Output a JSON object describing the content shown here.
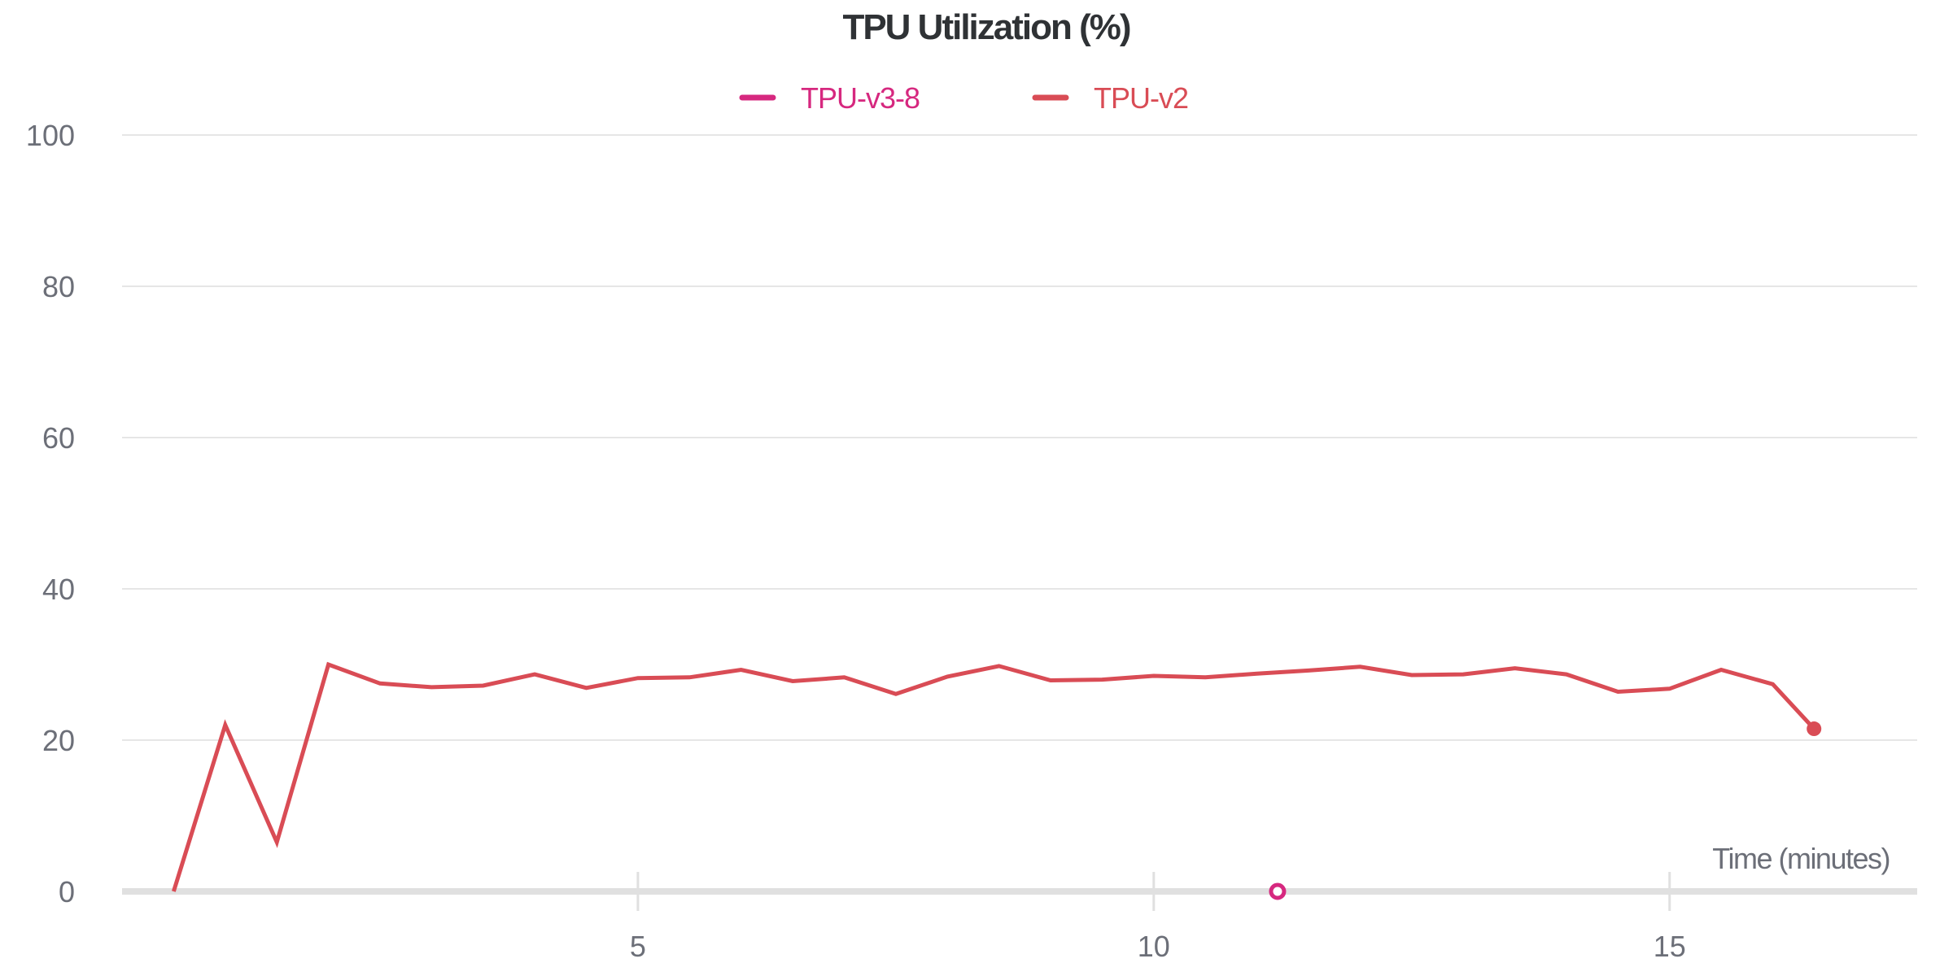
{
  "chart_data": {
    "type": "line",
    "title": "TPU Utilization (%)",
    "xlabel": "Time (minutes)",
    "ylabel": "",
    "xlim": [
      0,
      17.4
    ],
    "ylim": [
      0,
      100
    ],
    "x_ticks": [
      5,
      10,
      15
    ],
    "y_ticks": [
      0,
      20,
      40,
      60,
      80,
      100
    ],
    "grid": true,
    "legend_position": "top",
    "series": [
      {
        "name": "TPU-v3-8",
        "color": "#d6287f",
        "points": [
          {
            "x": 11.2,
            "y": 0
          }
        ]
      },
      {
        "name": "TPU-v2",
        "color": "#d94c55",
        "points": [
          {
            "x": 0.5,
            "y": 0
          },
          {
            "x": 1.0,
            "y": 22
          },
          {
            "x": 1.5,
            "y": 6.5
          },
          {
            "x": 2.0,
            "y": 30
          },
          {
            "x": 2.5,
            "y": 27.5
          },
          {
            "x": 3.0,
            "y": 27
          },
          {
            "x": 3.5,
            "y": 27.2
          },
          {
            "x": 4.0,
            "y": 28.7
          },
          {
            "x": 4.5,
            "y": 26.9
          },
          {
            "x": 5.0,
            "y": 28.2
          },
          {
            "x": 5.5,
            "y": 28.3
          },
          {
            "x": 6.0,
            "y": 29.3
          },
          {
            "x": 6.5,
            "y": 27.8
          },
          {
            "x": 7.0,
            "y": 28.3
          },
          {
            "x": 7.5,
            "y": 26.1
          },
          {
            "x": 8.0,
            "y": 28.4
          },
          {
            "x": 8.5,
            "y": 29.8
          },
          {
            "x": 9.0,
            "y": 27.9
          },
          {
            "x": 9.5,
            "y": 28.0
          },
          {
            "x": 10.0,
            "y": 28.5
          },
          {
            "x": 10.5,
            "y": 28.3
          },
          {
            "x": 11.0,
            "y": 28.8
          },
          {
            "x": 11.5,
            "y": 29.2
          },
          {
            "x": 12.0,
            "y": 29.7
          },
          {
            "x": 12.5,
            "y": 28.6
          },
          {
            "x": 13.0,
            "y": 28.7
          },
          {
            "x": 13.5,
            "y": 29.5
          },
          {
            "x": 14.0,
            "y": 28.7
          },
          {
            "x": 14.5,
            "y": 26.4
          },
          {
            "x": 15.0,
            "y": 26.8
          },
          {
            "x": 15.5,
            "y": 29.3
          },
          {
            "x": 16.0,
            "y": 27.4
          },
          {
            "x": 16.4,
            "y": 21.5
          }
        ]
      }
    ]
  }
}
